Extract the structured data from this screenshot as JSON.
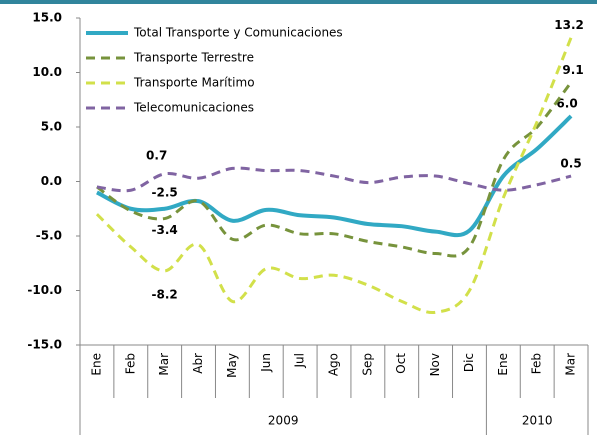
{
  "chart_data": {
    "type": "line",
    "categories": [
      "Ene",
      "Feb",
      "Mar",
      "Abr",
      "May",
      "Jun",
      "Jul",
      "Ago",
      "Sep",
      "Oct",
      "Nov",
      "Dic",
      "Ene",
      "Feb",
      "Mar"
    ],
    "x_groups": [
      {
        "label": "2009",
        "count": 12
      },
      {
        "label": "2010",
        "count": 3
      }
    ],
    "ylim": [
      -15,
      15
    ],
    "yticks": [
      {
        "value": -15,
        "label": "-15.0"
      },
      {
        "value": -10,
        "label": "-10.0"
      },
      {
        "value": -5,
        "label": "-5.0"
      },
      {
        "value": 0,
        "label": "0.0"
      },
      {
        "value": 5,
        "label": "5.0"
      },
      {
        "value": 10,
        "label": "10.0"
      },
      {
        "value": 15,
        "label": "15.0"
      }
    ],
    "legend": "upper left",
    "series": [
      {
        "name": "Total Transporte y Comunicaciones",
        "color": "#31a9c4",
        "dashed": false,
        "values": [
          -1.0,
          -2.5,
          -2.5,
          -1.8,
          -3.6,
          -2.6,
          -3.1,
          -3.3,
          -3.9,
          -4.1,
          -4.6,
          -4.5,
          0.5,
          3.0,
          6.0
        ],
        "value_labels": [
          null,
          null,
          "-2.5",
          null,
          null,
          null,
          null,
          null,
          null,
          null,
          null,
          null,
          null,
          null,
          "6.0"
        ]
      },
      {
        "name": "Transporte Terrestre",
        "color": "#77933c",
        "dashed": true,
        "values": [
          -0.5,
          -2.7,
          -3.4,
          -1.8,
          -5.3,
          -4.0,
          -4.8,
          -4.8,
          -5.5,
          -6.0,
          -6.6,
          -6.0,
          2.0,
          5.0,
          9.1
        ],
        "value_labels": [
          null,
          null,
          "-3.4",
          null,
          null,
          null,
          null,
          null,
          null,
          null,
          null,
          null,
          null,
          null,
          "9.1"
        ]
      },
      {
        "name": "Transporte Marítimo",
        "color": "#d2e04a",
        "dashed": true,
        "values": [
          -3.0,
          -6.0,
          -8.2,
          -5.8,
          -11.0,
          -8.0,
          -8.9,
          -8.6,
          -9.5,
          -11.0,
          -12.0,
          -10.0,
          -1.5,
          5.5,
          13.2
        ],
        "value_labels": [
          null,
          null,
          "-8.2",
          null,
          null,
          null,
          null,
          null,
          null,
          null,
          null,
          null,
          null,
          null,
          "13.2"
        ]
      },
      {
        "name": "Telecomunicaciones",
        "color": "#8064a2",
        "dashed": true,
        "values": [
          -0.5,
          -0.8,
          0.7,
          0.3,
          1.2,
          1.0,
          1.0,
          0.5,
          -0.1,
          0.4,
          0.5,
          -0.2,
          -0.8,
          -0.3,
          0.5
        ],
        "value_labels": [
          null,
          null,
          "0.7",
          null,
          null,
          null,
          null,
          null,
          null,
          null,
          null,
          null,
          null,
          null,
          "0.5"
        ]
      }
    ]
  }
}
